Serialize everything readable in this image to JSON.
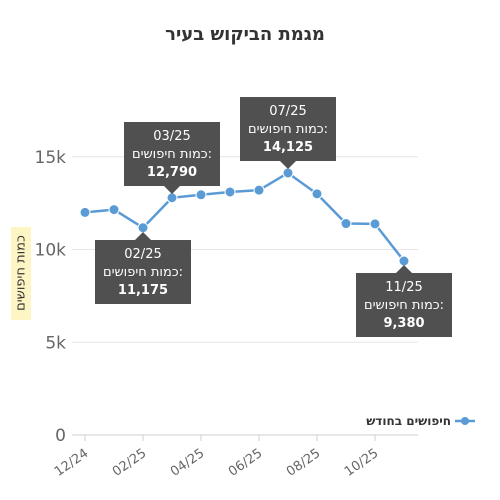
{
  "chart_data": {
    "type": "line",
    "title": "מגמת הביקוש בעיר",
    "ylabel": "כמות חיפושים",
    "xlabel": "",
    "ylim": [
      0,
      17500
    ],
    "yticks": [
      0,
      5000,
      10000,
      15000
    ],
    "ytick_labels": [
      "0",
      "5k",
      "10k",
      "15k"
    ],
    "x": [
      "12/24",
      "01/25",
      "02/25",
      "03/25",
      "04/25",
      "05/25",
      "06/25",
      "07/25",
      "08/25",
      "09/25",
      "10/25",
      "11/25"
    ],
    "xtick_labels": [
      "12/24",
      "02/25",
      "04/25",
      "06/25",
      "08/25",
      "10/25"
    ],
    "series": [
      {
        "name": "חיפושים בחודש",
        "color": "#5b9bd5",
        "values": [
          12000,
          12150,
          11175,
          12790,
          12950,
          13100,
          13200,
          14125,
          13000,
          11400,
          11380,
          9380
        ]
      }
    ],
    "grid": true,
    "legend_position": "right",
    "annotations": [
      {
        "month": "03/25",
        "label": "כמות חיפושים:",
        "value": "12,790",
        "placement": "above"
      },
      {
        "month": "07/25",
        "label": "כמות חיפושים:",
        "value": "14,125",
        "placement": "above"
      },
      {
        "month": "02/25",
        "label": "כמות חיפושים:",
        "value": "11,175",
        "placement": "below"
      },
      {
        "month": "11/25",
        "label": "כמות חיפושים:",
        "value": "9,380",
        "placement": "below"
      }
    ]
  },
  "colors": {
    "line": "#5b9bd5",
    "grid": "#e6e6e6",
    "callout_bg": "#505050",
    "ylabel_bg": "#fdf6c4"
  }
}
